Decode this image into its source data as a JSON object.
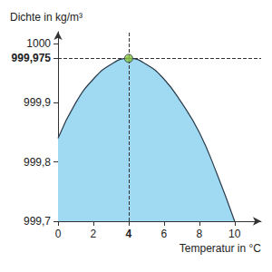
{
  "chart_data": {
    "type": "area",
    "y_label": "Dichte in kg/m³",
    "x_label": "Temperatur in °C",
    "x": [
      0,
      1,
      2,
      3,
      4,
      5,
      6,
      7,
      8,
      9,
      10
    ],
    "values": [
      999.84,
      999.9,
      999.94,
      999.965,
      999.975,
      999.965,
      999.94,
      999.9,
      999.85,
      999.78,
      999.7
    ],
    "color": "#9fd9f2",
    "xlim": [
      0,
      11.5
    ],
    "xticks": [
      0,
      2,
      4,
      6,
      8,
      10
    ],
    "ylim": [
      999.7,
      1000.02
    ],
    "yticks": [
      {
        "value": 999.7,
        "label": "999,7"
      },
      {
        "value": 999.8,
        "label": "999,8"
      },
      {
        "value": 999.9,
        "label": "999,9"
      },
      {
        "value": 999.975,
        "label": "999,975"
      },
      1000
    ],
    "highlight": {
      "x": 4,
      "y": 999.975,
      "color": "#8dc63f"
    },
    "grid": false
  }
}
